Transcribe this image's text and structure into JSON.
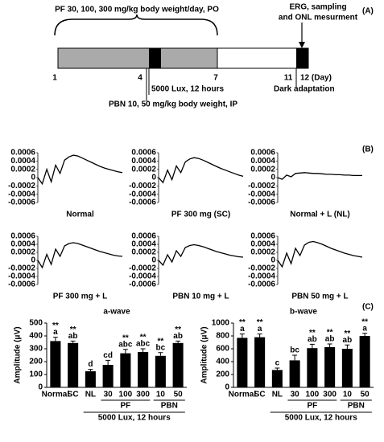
{
  "panels": [
    "(A)",
    "(B)",
    "(C)"
  ],
  "timeline": {
    "treatment": "PF 30, 100, 300 mg/kg body weight/day, PO",
    "endpoint": [
      "ERG, sampling",
      "and ONL mesurment"
    ],
    "light": "5000 Lux, 12 hours",
    "pbn": "PBN 10, 50 mg/kg body weight, IP",
    "dark": "Dark adaptation",
    "days": [
      1,
      4,
      7,
      11,
      {
        "value": 12,
        "label": "12 (Day)"
      }
    ]
  },
  "chart_data": [
    {
      "type": "line",
      "title": "Normal",
      "color": "#000000",
      "ylim": [
        -0.0006,
        0.0006
      ],
      "yticks": [
        0.0006,
        0.0004,
        0.0002,
        0,
        -0.0002,
        -0.0004,
        -0.0006
      ],
      "values": [
        0,
        -0.00015,
        0.0002,
        -0.0001,
        0.0003,
        0.0001,
        0.00042,
        0.0005,
        0.00054,
        0.00052,
        0.00047,
        0.00042,
        0.00037,
        0.00032,
        0.00027,
        0.00023,
        0.0002,
        0.00017,
        0.00014,
        0.00012
      ]
    },
    {
      "type": "line",
      "title": "PF 300 mg (SC)",
      "color": "#000000",
      "ylim": [
        -0.0006,
        0.0006
      ],
      "yticks": [
        0.0006,
        0.0004,
        0.0002,
        0,
        -0.0002,
        -0.0004,
        -0.0006
      ],
      "values": [
        0,
        -0.00012,
        0.00018,
        -5e-05,
        0.00028,
        0.00012,
        0.00038,
        0.00045,
        0.00048,
        0.00046,
        0.00042,
        0.00037,
        0.00032,
        0.00027,
        0.00022,
        0.00018,
        0.00014,
        0.0001,
        6e-05,
        3e-05
      ]
    },
    {
      "type": "line",
      "title": "Normal + L (NL)",
      "color": "#000000",
      "ylim": [
        -0.0006,
        0.0006
      ],
      "yticks": [
        0.0006,
        0.0004,
        0.0002,
        0,
        -0.0002,
        -0.0004,
        -0.0006
      ],
      "values": [
        0,
        -4e-05,
        6e-05,
        2e-05,
        0.0001,
        0.00011,
        0.00012,
        0.00011,
        0.0001,
        0.0001,
        9e-05,
        8e-05,
        8e-05,
        7e-05,
        7e-05,
        6e-05,
        6e-05,
        5e-05,
        5e-05,
        5e-05
      ]
    },
    {
      "type": "line",
      "title": "PF 300 mg + L",
      "color": "#000000",
      "ylim": [
        -0.0006,
        0.0006
      ],
      "yticks": [
        0.0006,
        0.0004,
        0.0002,
        0,
        -0.0002,
        -0.0004,
        -0.0006
      ],
      "values": [
        0,
        -0.00018,
        0.00015,
        -0.0001,
        0.00028,
        0.0001,
        0.00036,
        0.00042,
        0.00044,
        0.00042,
        0.00038,
        0.00034,
        0.0003,
        0.00026,
        0.00022,
        0.00019,
        0.00016,
        0.00013,
        0.00011,
        0.0001
      ]
    },
    {
      "type": "line",
      "title": "PBN 10 mg + L",
      "color": "#000000",
      "ylim": [
        -0.0006,
        0.0006
      ],
      "yticks": [
        0.0006,
        0.0004,
        0.0002,
        0,
        -0.0002,
        -0.0004,
        -0.0006
      ],
      "values": [
        0,
        -0.00012,
        0.00014,
        -4e-05,
        0.00024,
        0.0001,
        0.00032,
        0.00037,
        0.00039,
        0.00037,
        0.00034,
        0.0003,
        0.00026,
        0.00022,
        0.00019,
        0.00016,
        0.00013,
        0.00011,
        9e-05,
        8e-05
      ]
    },
    {
      "type": "line",
      "title": "PBN 50 mg + L",
      "color": "#000000",
      "ylim": [
        -0.0006,
        0.0006
      ],
      "yticks": [
        0.0006,
        0.0004,
        0.0002,
        0,
        -0.0002,
        -0.0004,
        -0.0006
      ],
      "values": [
        0,
        -0.00016,
        0.00018,
        -8e-05,
        0.0003,
        0.00012,
        0.00038,
        0.00045,
        0.00047,
        0.00044,
        0.0004,
        0.00035,
        0.0003,
        0.00026,
        0.00022,
        0.00018,
        0.00015,
        0.00012,
        0.0001,
        8e-05
      ]
    },
    {
      "type": "bar",
      "title": "a-wave",
      "ylabel": "Amplitude (μV)",
      "color": "#000000",
      "categories": [
        "Normal",
        "SC",
        "NL",
        "30",
        "100",
        "300",
        "10",
        "50"
      ],
      "values": [
        360,
        345,
        125,
        175,
        265,
        275,
        245,
        345
      ],
      "errors": [
        30,
        15,
        15,
        35,
        30,
        25,
        25,
        15
      ],
      "letters": [
        "a",
        "ab",
        "d",
        "cd",
        "abc",
        "abc",
        "bc",
        "ab"
      ],
      "stars": [
        "**",
        "**",
        null,
        null,
        "**",
        "**",
        "**",
        "**"
      ],
      "groups": [
        {
          "label": "PF",
          "start": 3,
          "end": 5
        },
        {
          "label": "PBN",
          "start": 6,
          "end": 7
        },
        {
          "label": "5000 Lux, 12 hours",
          "start": 2,
          "end": 7
        }
      ],
      "ylim": [
        0,
        500
      ],
      "yticks": [
        0,
        100,
        200,
        300,
        400,
        500
      ]
    },
    {
      "type": "bar",
      "title": "b-wave",
      "ylabel": "Amplitude (μV)",
      "color": "#000000",
      "categories": [
        "Normal",
        "SC",
        "NL",
        "30",
        "100",
        "300",
        "10",
        "50"
      ],
      "values": [
        770,
        780,
        270,
        420,
        610,
        625,
        600,
        800
      ],
      "errors": [
        60,
        50,
        30,
        80,
        60,
        50,
        60,
        40
      ],
      "letters": [
        "a",
        "a",
        "c",
        "bc",
        "ab",
        "ab",
        "ab",
        "a"
      ],
      "stars": [
        "**",
        "**",
        null,
        null,
        "**",
        "**",
        "**",
        "**"
      ],
      "groups": [
        {
          "label": "PF",
          "start": 3,
          "end": 5
        },
        {
          "label": "PBN",
          "start": 6,
          "end": 7
        },
        {
          "label": "5000 Lux, 12 hours",
          "start": 2,
          "end": 7
        }
      ],
      "ylim": [
        0,
        1000
      ],
      "yticks": [
        0,
        200,
        400,
        600,
        800,
        1000
      ]
    }
  ]
}
